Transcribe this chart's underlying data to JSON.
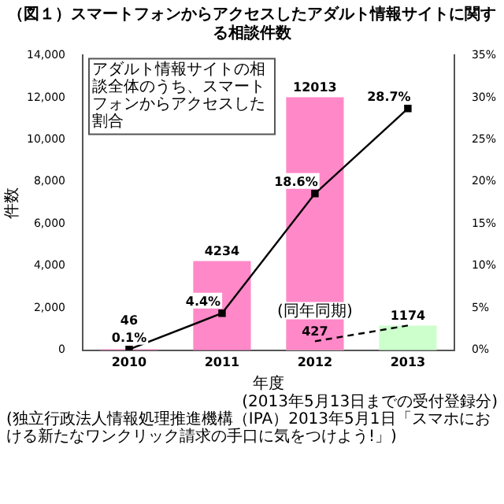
{
  "chart_data": {
    "type": "bar",
    "title": "（図１）スマートフォンからアクセスしたアダルト情報サイトに関する相談件数",
    "xlabel": "年度",
    "ylabel": "件数",
    "categories": [
      "2010",
      "2011",
      "2012",
      "2013"
    ],
    "series": [
      {
        "color": "#ff88c8",
        "values": [
          46,
          4234,
          12013,
          null
        ],
        "value_labels": [
          "46",
          "4234",
          "12013",
          null
        ]
      },
      {
        "color": "#ccffcc",
        "values": [
          null,
          null,
          427,
          1174
        ],
        "value_labels": [
          null,
          null,
          "427",
          "1174"
        ]
      },
      {
        "type": "line",
        "color": "#000000",
        "line_style": "dashed",
        "marker": "none",
        "values": [
          null,
          null,
          427,
          1174
        ]
      },
      {
        "type": "line",
        "axis": "y2",
        "color": "#000000",
        "line_style": "solid",
        "marker": "square",
        "values": [
          0.1,
          4.4,
          18.6,
          28.7
        ],
        "value_labels": [
          "0.1%",
          "4.4%",
          "18.6%",
          "28.7%"
        ]
      }
    ],
    "ylim": [
      0,
      14000
    ],
    "yticks": [
      0,
      {
        "value": 2000,
        "label": "2,000"
      },
      {
        "value": 4000,
        "label": "4,000"
      },
      {
        "value": 6000,
        "label": "6,000"
      },
      {
        "value": 8000,
        "label": "8,000"
      },
      {
        "value": 10000,
        "label": "10,000"
      },
      {
        "value": 12000,
        "label": "12,000"
      },
      {
        "value": 14000,
        "label": "14,000"
      }
    ],
    "y2lim": [
      0,
      35
    ],
    "y2ticks": [
      {
        "value": 0,
        "label": "0%"
      },
      {
        "value": 5,
        "label": "5%"
      },
      {
        "value": 10,
        "label": "10%"
      },
      {
        "value": 15,
        "label": "15%"
      },
      {
        "value": 20,
        "label": "20%"
      },
      {
        "value": 25,
        "label": "25%"
      },
      {
        "value": 30,
        "label": "30%"
      },
      {
        "value": 35,
        "label": "35%"
      }
    ],
    "annotations": [
      "アダルト情報サイトの相談全体のうち、スマートフォンからアクセスした割合",
      {
        "text": "(同年同期)",
        "x": "2012",
        "y": 427
      },
      "(2013年5月13日までの受付登録分)",
      "(独立行政法人情報処理推進機構（IPA）2013年5月1日「スマホにおける新たなワンクリック請求の手口に気をつけよう!」)"
    ],
    "grid": false,
    "legend": false
  }
}
